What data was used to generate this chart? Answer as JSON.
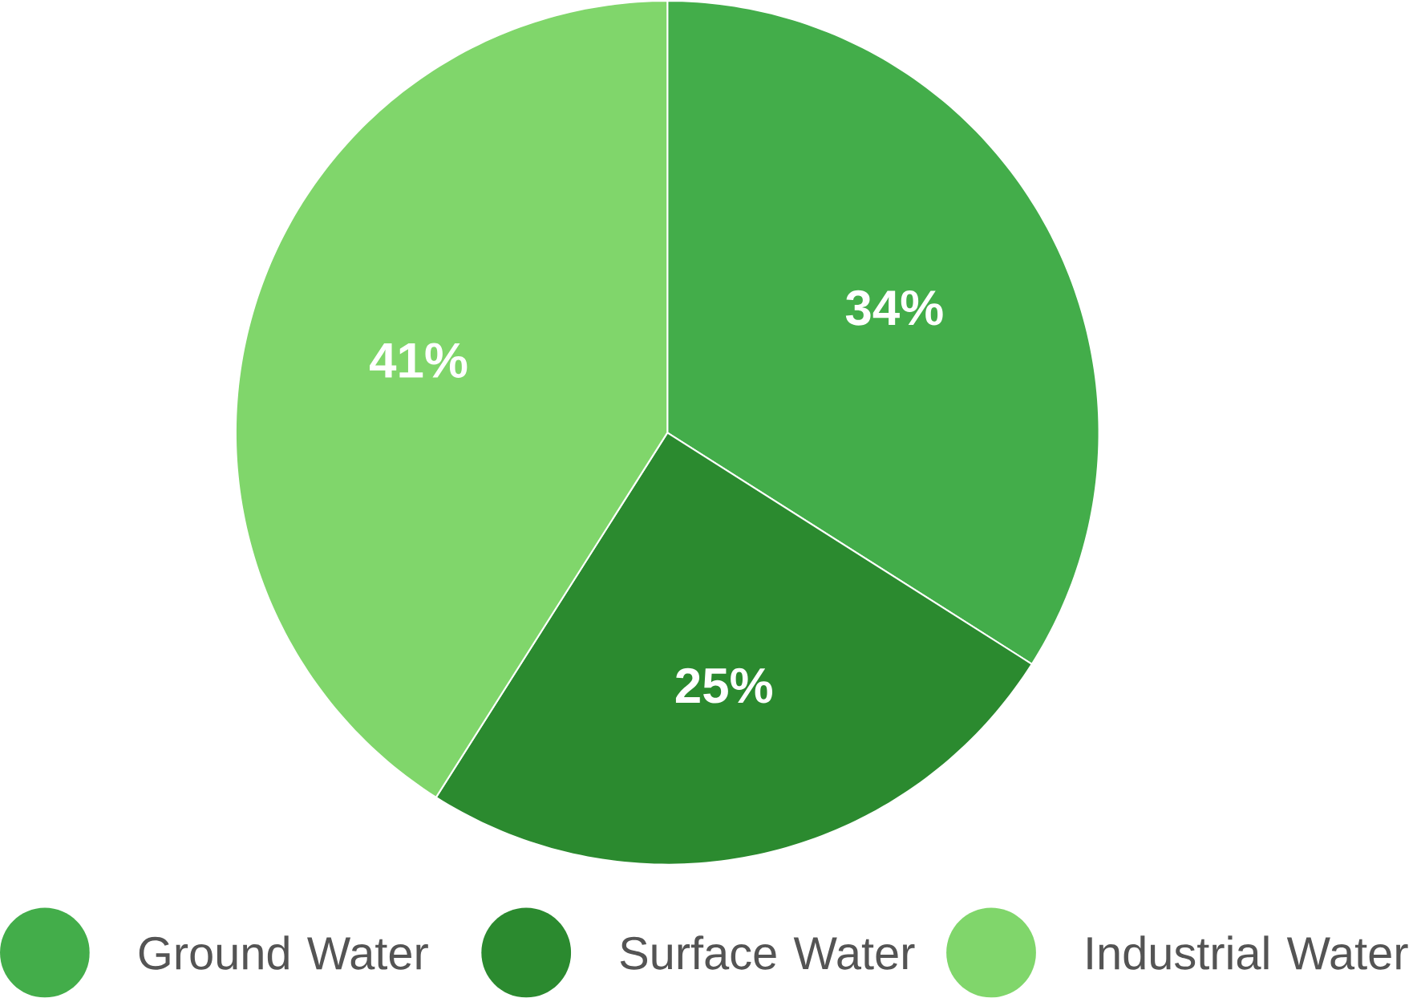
{
  "chart_data": {
    "type": "pie",
    "categories": [
      "Ground Water",
      "Surface Water",
      "Industrial Water"
    ],
    "values": [
      34,
      25,
      41
    ],
    "colors": [
      "#43ad4a",
      "#2b8a2f",
      "#80d66b"
    ],
    "value_labels": [
      "34%",
      "25%",
      "41%"
    ],
    "legend": "bottom"
  }
}
